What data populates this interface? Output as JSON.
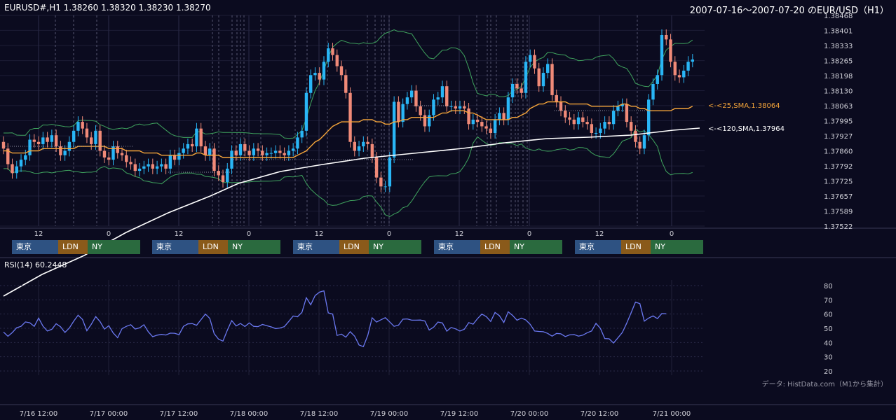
{
  "header": {
    "symbol_info": "EURUSD#,H1 1.38260 1.38320 1.38230 1.38270",
    "range_title": "2007-07-16～2007-07-20 のEUR/USD（H1）"
  },
  "rsi_label": "RSI(14) 60.2448",
  "credit": "データ: HistData.com（M1から集計）",
  "sessions": {
    "tokyo": "東京",
    "london": "LDN",
    "newyork": "NY"
  },
  "colors": {
    "background": "#0b0b1f",
    "up_candle": "#29b6f6",
    "down_candle": "#f08a78",
    "sma25": "#f5a53a",
    "sma120": "#ffffff",
    "bollinger": "#3fa35e",
    "rsi": "#6a78f0",
    "session_tokyo": "#2e5282",
    "session_london": "#8a5a1a",
    "session_newyork": "#2a6a3e"
  },
  "chart_data": [
    {
      "type": "candlestick",
      "title": "EURUSD#,H1",
      "ylim": [
        1.37522,
        1.38468
      ],
      "y_ticks": [
        "1.38468",
        "1.38401",
        "1.38333",
        "1.38265",
        "1.38198",
        "1.38130",
        "1.38063",
        "1.37995",
        "1.37927",
        "1.37860",
        "1.37792",
        "1.37725",
        "1.37657",
        "1.37589",
        "1.37522"
      ],
      "x_hour_ticks": [
        "12",
        "0",
        "12",
        "0",
        "12",
        "0",
        "12",
        "0",
        "12",
        "0"
      ],
      "x_date_ticks": [
        "7/16 12:00",
        "7/17 00:00",
        "7/17 12:00",
        "7/18 00:00",
        "7/18 12:00",
        "7/19 00:00",
        "7/19 12:00",
        "7/20 00:00",
        "7/20 12:00",
        "7/21 00:00"
      ],
      "annotations": [
        "<-<25,SMA,1.38064",
        "<-<120,SMA,1.37964"
      ],
      "closes": [
        1.3787,
        1.378,
        1.3776,
        1.3779,
        1.3782,
        1.3784,
        1.3791,
        1.379,
        1.3789,
        1.3792,
        1.379,
        1.3793,
        1.3788,
        1.3784,
        1.3786,
        1.379,
        1.3795,
        1.3799,
        1.3796,
        1.3792,
        1.3789,
        1.3795,
        1.3786,
        1.3783,
        1.3782,
        1.3788,
        1.3785,
        1.3784,
        1.3781,
        1.378,
        1.3777,
        1.3778,
        1.3779,
        1.378,
        1.3778,
        1.3779,
        1.378,
        1.3778,
        1.3784,
        1.3782,
        1.3785,
        1.3787,
        1.3789,
        1.3788,
        1.3796,
        1.3788,
        1.3784,
        1.3787,
        1.3777,
        1.3775,
        1.3772,
        1.3778,
        1.3786,
        1.3784,
        1.3789,
        1.3786,
        1.3784,
        1.3787,
        1.3786,
        1.3784,
        1.3785,
        1.3785,
        1.3786,
        1.3785,
        1.3784,
        1.3786,
        1.3787,
        1.3792,
        1.3795,
        1.3812,
        1.382,
        1.3821,
        1.3818,
        1.3826,
        1.3832,
        1.3829,
        1.3824,
        1.382,
        1.3812,
        1.379,
        1.3786,
        1.3788,
        1.379,
        1.3789,
        1.3783,
        1.3774,
        1.377,
        1.377,
        1.3783,
        1.3808,
        1.3799,
        1.3807,
        1.381,
        1.3813,
        1.3806,
        1.3802,
        1.3797,
        1.3802,
        1.3809,
        1.381,
        1.3815,
        1.3806,
        1.3806,
        1.3805,
        1.3806,
        1.3805,
        1.3798,
        1.38,
        1.3799,
        1.3797,
        1.3796,
        1.3794,
        1.38,
        1.3803,
        1.38,
        1.381,
        1.3816,
        1.3814,
        1.3812,
        1.3826,
        1.3829,
        1.3823,
        1.3815,
        1.3821,
        1.3825,
        1.3811,
        1.3808,
        1.3804,
        1.3801,
        1.38,
        1.3798,
        1.3801,
        1.3799,
        1.3798,
        1.3794,
        1.3794,
        1.3796,
        1.3799,
        1.3798,
        1.3804,
        1.3806,
        1.3807,
        1.3799,
        1.3795,
        1.379,
        1.3787,
        1.3793,
        1.3809,
        1.3816,
        1.382,
        1.3838,
        1.3836,
        1.3826,
        1.382,
        1.3819,
        1.3822,
        1.3826,
        1.3827
      ],
      "sma25": [
        1.3786,
        1.3786,
        1.3785,
        1.3785,
        1.3785,
        1.3785,
        1.3786,
        1.3786,
        1.3786,
        1.3787,
        1.3787,
        1.3787,
        1.3787,
        1.3787,
        1.3787,
        1.3787,
        1.3787,
        1.3788,
        1.3788,
        1.3788,
        1.3788,
        1.3788,
        1.3788,
        1.3788,
        1.3787,
        1.3787,
        1.3787,
        1.3787,
        1.3786,
        1.3786,
        1.3786,
        1.3786,
        1.3785,
        1.3785,
        1.3785,
        1.3785,
        1.3784,
        1.3784,
        1.3784,
        1.3784,
        1.3784,
        1.3784,
        1.3784,
        1.3784,
        1.3785,
        1.3785,
        1.3784,
        1.3784,
        1.3784,
        1.3784,
        1.3783,
        1.3783,
        1.3783,
        1.3783,
        1.3783,
        1.3783,
        1.3783,
        1.3783,
        1.3783,
        1.3783,
        1.3783,
        1.3783,
        1.3783,
        1.3783,
        1.3783,
        1.3783,
        1.3783,
        1.3784,
        1.3785,
        1.3786,
        1.3788,
        1.379,
        1.3791,
        1.3793,
        1.3795,
        1.3797,
        1.3798,
        1.3799,
        1.3799,
        1.3799,
        1.3799,
        1.3799,
        1.38,
        1.38,
        1.38,
        1.3799,
        1.3799,
        1.3798,
        1.3798,
        1.3799,
        1.3799,
        1.38,
        1.38,
        1.3801,
        1.3801,
        1.3801,
        1.3801,
        1.3801,
        1.3801,
        1.3802,
        1.3803,
        1.3803,
        1.3804,
        1.3804,
        1.3804,
        1.3804,
        1.3803,
        1.3803,
        1.3802,
        1.3801,
        1.38,
        1.38,
        1.38,
        1.38,
        1.38,
        1.38,
        1.3801,
        1.3801,
        1.3802,
        1.3803,
        1.3805,
        1.3806,
        1.3807,
        1.3807,
        1.3808,
        1.3808,
        1.3808,
        1.3808,
        1.3808,
        1.3807,
        1.3807,
        1.3807,
        1.3807,
        1.3807,
        1.3806,
        1.3806,
        1.3806,
        1.3806,
        1.3806,
        1.3806,
        1.3806,
        1.3807,
        1.3807,
        1.3806,
        1.3806,
        1.3805,
        1.3805,
        1.3804,
        1.3804,
        1.3804,
        1.3804,
        1.3804,
        1.3804,
        1.3805,
        1.3805,
        1.3805,
        1.3805,
        1.3806,
        1.3806,
        1.3806
      ]
    },
    {
      "type": "line",
      "title": "RSI(14)",
      "ylim": [
        20,
        80
      ],
      "y_ticks": [
        "80",
        "70",
        "60",
        "50",
        "40",
        "30",
        "20"
      ],
      "values": [
        47.4,
        44.4,
        47.0,
        50.4,
        51.4,
        54.5,
        53.9,
        51.4,
        57.2,
        51.5,
        48.1,
        49.3,
        53.2,
        51.1,
        47.1,
        50.2,
        55.0,
        59.2,
        56.2,
        48.3,
        52.8,
        58.2,
        54.7,
        49.4,
        51.8,
        46.7,
        43.4,
        49.7,
        51.4,
        52.5,
        49.5,
        50.3,
        52.5,
        47.5,
        44.1,
        45.2,
        45.7,
        45.3,
        46.6,
        46.5,
        45.5,
        51.4,
        53.1,
        53.3,
        52.1,
        56.1,
        60.0,
        57.0,
        46.2,
        42.4,
        41.0,
        48.7,
        55.4,
        51.6,
        53.4,
        51.3,
        53.8,
        51.4,
        51.2,
        52.7,
        51.8,
        51.0,
        49.8,
        50.2,
        51.2,
        54.8,
        58.6,
        58.1,
        61.2,
        71.5,
        66.5,
        73.0,
        75.4,
        76.3,
        60.8,
        60.0,
        45.0,
        45.9,
        43.8,
        47.6,
        44.5,
        38.3,
        37.1,
        45.1,
        57.4,
        54.4,
        56.0,
        57.5,
        54.5,
        51.4,
        52.2,
        56.4,
        56.6,
        55.7,
        55.7,
        55.8,
        55.1,
        48.8,
        50.8,
        54.4,
        53.8,
        48.0,
        50.6,
        49.6,
        48.1,
        49.3,
        54.0,
        52.9,
        56.8,
        60.0,
        58.2,
        54.8,
        61.1,
        58.8,
        54.1,
        61.6,
        59.0,
        55.7,
        57.2,
        55.9,
        52.8,
        48.1,
        47.8,
        47.6,
        46.4,
        44.5,
        46.4,
        46.1,
        44.2,
        45.4,
        45.6,
        44.5,
        45.2,
        46.9,
        48.1,
        53.5,
        49.9,
        42.8,
        42.6,
        39.6,
        43.3,
        47.1,
        53.6,
        60.9,
        68.4,
        67.3,
        55.0,
        57.2,
        58.7,
        56.8,
        60.4,
        60.2
      ]
    }
  ]
}
